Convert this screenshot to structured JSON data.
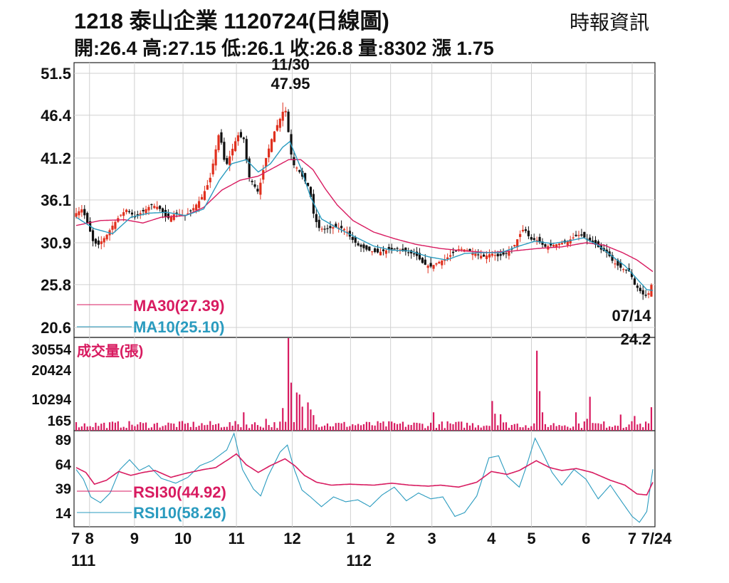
{
  "header": {
    "title": "1218  泰山企業 1120724(日線圖)",
    "source": "時報資訊",
    "summary": "開:26.4 高:27.15 低:26.1 收:26.8 量:8302 漲 1.75"
  },
  "colors": {
    "up": "#e0301e",
    "down": "#111111",
    "ma30": "#d81b60",
    "ma10": "#2a9bbf",
    "volume": "#d81b60",
    "grid": "#d0d0d0"
  },
  "chart_data": [
    {
      "type": "candlestick",
      "title": "",
      "yticks": [
        51.5,
        46.4,
        41.2,
        36.1,
        30.9,
        25.8,
        20.6
      ],
      "ylim": [
        20.6,
        51.5
      ],
      "xticks": [
        "7",
        "8",
        "9",
        "10",
        "11",
        "12",
        "1",
        "2",
        "3",
        "4",
        "5",
        "6",
        "7",
        "7/24"
      ],
      "xtick_pos": [
        0,
        11,
        48,
        88,
        132,
        178,
        226,
        259,
        293,
        342,
        375,
        420,
        458,
        475
      ],
      "year_labels": [
        {
          "label": "111",
          "pos": 6
        },
        {
          "label": "112",
          "pos": 233
        }
      ],
      "annotations": [
        {
          "date": "11/30",
          "value": "47.95",
          "label_top": "11/30",
          "label_bottom": "47.95"
        },
        {
          "date": "07/14",
          "value": "24.2",
          "label_top": "07/14",
          "label_bottom": "24.2"
        }
      ],
      "legend": [
        {
          "name": "MA30(27.39)",
          "color": "#d81b60"
        },
        {
          "name": "MA10(25.10)",
          "color": "#2a9bbf"
        }
      ],
      "close_keypoints": [
        [
          0,
          34.5
        ],
        [
          5,
          35
        ],
        [
          10,
          33
        ],
        [
          14,
          31
        ],
        [
          18,
          30.6
        ],
        [
          25,
          31.8
        ],
        [
          30,
          33
        ],
        [
          36,
          34.2
        ],
        [
          42,
          35
        ],
        [
          48,
          34
        ],
        [
          55,
          34.7
        ],
        [
          62,
          35.5
        ],
        [
          68,
          35.2
        ],
        [
          75,
          33.8
        ],
        [
          82,
          34.5
        ],
        [
          90,
          34.2
        ],
        [
          96,
          35
        ],
        [
          103,
          36.3
        ],
        [
          110,
          38.5
        ],
        [
          118,
          44.5
        ],
        [
          123,
          40
        ],
        [
          128,
          42
        ],
        [
          133,
          44
        ],
        [
          138,
          43.5
        ],
        [
          142,
          39
        ],
        [
          146,
          38
        ],
        [
          150,
          37
        ],
        [
          156,
          41
        ],
        [
          162,
          44
        ],
        [
          168,
          46
        ],
        [
          172,
          47.5
        ],
        [
          176,
          43
        ],
        [
          178,
          40.5
        ],
        [
          182,
          40
        ],
        [
          188,
          38.5
        ],
        [
          192,
          37.5
        ],
        [
          196,
          34
        ],
        [
          200,
          32.7
        ],
        [
          205,
          32.5
        ],
        [
          212,
          32.8
        ],
        [
          218,
          32.7
        ],
        [
          222,
          32.5
        ],
        [
          226,
          31.5
        ],
        [
          232,
          30.6
        ],
        [
          240,
          30
        ],
        [
          248,
          29.7
        ],
        [
          256,
          30
        ],
        [
          264,
          30.2
        ],
        [
          272,
          29.8
        ],
        [
          280,
          29.4
        ],
        [
          286,
          28.3
        ],
        [
          292,
          28
        ],
        [
          298,
          28.5
        ],
        [
          305,
          29
        ],
        [
          310,
          29.6
        ],
        [
          316,
          30.2
        ],
        [
          322,
          30
        ],
        [
          330,
          29.5
        ],
        [
          336,
          29.2
        ],
        [
          342,
          29.6
        ],
        [
          348,
          29.2
        ],
        [
          354,
          29.6
        ],
        [
          360,
          30.3
        ],
        [
          365,
          31.8
        ],
        [
          369,
          32.7
        ],
        [
          374,
          31.3
        ],
        [
          380,
          31.2
        ],
        [
          386,
          30.4
        ],
        [
          392,
          30.6
        ],
        [
          398,
          30.8
        ],
        [
          404,
          31
        ],
        [
          410,
          31.6
        ],
        [
          415,
          31.9
        ],
        [
          420,
          31.4
        ],
        [
          426,
          30.9
        ],
        [
          432,
          30.1
        ],
        [
          438,
          29.6
        ],
        [
          442,
          28.6
        ],
        [
          448,
          27.9
        ],
        [
          452,
          27.6
        ],
        [
          456,
          27.4
        ],
        [
          460,
          25.8
        ],
        [
          463,
          25.3
        ],
        [
          467,
          24.6
        ],
        [
          470,
          24.4
        ],
        [
          473,
          25.1
        ],
        [
          475,
          26.8
        ]
      ],
      "ma30_keypoints": [
        [
          0,
          33
        ],
        [
          20,
          33.6
        ],
        [
          40,
          33.7
        ],
        [
          55,
          33.3
        ],
        [
          70,
          34
        ],
        [
          90,
          34.2
        ],
        [
          105,
          35.2
        ],
        [
          120,
          37.3
        ],
        [
          135,
          38.5
        ],
        [
          150,
          39
        ],
        [
          165,
          40.2
        ],
        [
          175,
          41
        ],
        [
          185,
          41
        ],
        [
          195,
          39.8
        ],
        [
          205,
          37.5
        ],
        [
          215,
          35.5
        ],
        [
          228,
          33.6
        ],
        [
          245,
          32.2
        ],
        [
          262,
          31.4
        ],
        [
          280,
          30.7
        ],
        [
          300,
          30.2
        ],
        [
          320,
          29.9
        ],
        [
          340,
          29.7
        ],
        [
          360,
          29.9
        ],
        [
          380,
          30.2
        ],
        [
          400,
          30.4
        ],
        [
          420,
          30.9
        ],
        [
          435,
          30.6
        ],
        [
          450,
          29.7
        ],
        [
          462,
          28.8
        ],
        [
          475,
          27.39
        ]
      ],
      "ma10_keypoints": [
        [
          0,
          34
        ],
        [
          15,
          32.6
        ],
        [
          30,
          32
        ],
        [
          45,
          34
        ],
        [
          60,
          34.5
        ],
        [
          75,
          34.6
        ],
        [
          90,
          34.2
        ],
        [
          105,
          35
        ],
        [
          118,
          38.5
        ],
        [
          128,
          40.5
        ],
        [
          140,
          41
        ],
        [
          150,
          39.5
        ],
        [
          160,
          40.5
        ],
        [
          170,
          42.5
        ],
        [
          176,
          43.2
        ],
        [
          185,
          40
        ],
        [
          193,
          36.5
        ],
        [
          202,
          33.8
        ],
        [
          215,
          32.7
        ],
        [
          230,
          31.6
        ],
        [
          245,
          30.5
        ],
        [
          260,
          30
        ],
        [
          275,
          29.9
        ],
        [
          290,
          29.2
        ],
        [
          305,
          28.8
        ],
        [
          320,
          29.6
        ],
        [
          335,
          29.7
        ],
        [
          350,
          29.7
        ],
        [
          365,
          30.5
        ],
        [
          378,
          31.1
        ],
        [
          392,
          30.8
        ],
        [
          405,
          31.1
        ],
        [
          418,
          31.5
        ],
        [
          430,
          30.6
        ],
        [
          442,
          29.2
        ],
        [
          452,
          28.1
        ],
        [
          462,
          26.5
        ],
        [
          470,
          25.2
        ],
        [
          475,
          25.1
        ]
      ],
      "highs": [
        {
          "pos": 171,
          "value": 47.95
        },
        {
          "pos": 469,
          "value": 24.2
        }
      ]
    },
    {
      "type": "bar",
      "title": "成交量(張)",
      "yticks": [
        30554,
        20424,
        10294,
        165
      ],
      "ylim": [
        0,
        32000
      ],
      "spikes": [
        {
          "pos": 174,
          "value": 33000
        },
        {
          "pos": 178,
          "value": 17000
        },
        {
          "pos": 181,
          "value": 13500
        },
        {
          "pos": 183,
          "value": 12800
        },
        {
          "pos": 186,
          "value": 8500
        },
        {
          "pos": 191,
          "value": 10000
        },
        {
          "pos": 193,
          "value": 7500
        },
        {
          "pos": 196,
          "value": 5500
        },
        {
          "pos": 170,
          "value": 8000
        },
        {
          "pos": 137,
          "value": 6500
        },
        {
          "pos": 156,
          "value": 4200
        },
        {
          "pos": 294,
          "value": 6500
        },
        {
          "pos": 342,
          "value": 10500
        },
        {
          "pos": 346,
          "value": 6000
        },
        {
          "pos": 350,
          "value": 5800
        },
        {
          "pos": 379,
          "value": 28300
        },
        {
          "pos": 381,
          "value": 14000
        },
        {
          "pos": 384,
          "value": 6500
        },
        {
          "pos": 424,
          "value": 12000
        },
        {
          "pos": 411,
          "value": 6500
        },
        {
          "pos": 420,
          "value": 4200
        },
        {
          "pos": 449,
          "value": 5700
        },
        {
          "pos": 461,
          "value": 5200
        },
        {
          "pos": 475,
          "value": 8302
        }
      ],
      "base_level": 1800
    },
    {
      "type": "line",
      "title": "",
      "yticks": [
        89,
        64,
        39,
        14
      ],
      "ylim": [
        0,
        100
      ],
      "legend": [
        {
          "name": "RSI30(44.92)",
          "color": "#d81b60"
        },
        {
          "name": "RSI10(58.26)",
          "color": "#2a9bbf"
        }
      ],
      "rsi30_keypoints": [
        [
          0,
          60
        ],
        [
          8,
          55
        ],
        [
          15,
          43
        ],
        [
          25,
          47
        ],
        [
          35,
          56
        ],
        [
          45,
          52
        ],
        [
          55,
          55
        ],
        [
          65,
          57
        ],
        [
          78,
          50
        ],
        [
          90,
          54
        ],
        [
          105,
          58
        ],
        [
          115,
          60
        ],
        [
          125,
          68
        ],
        [
          132,
          74
        ],
        [
          140,
          63
        ],
        [
          150,
          55
        ],
        [
          160,
          62
        ],
        [
          172,
          69
        ],
        [
          180,
          62
        ],
        [
          188,
          52
        ],
        [
          198,
          45
        ],
        [
          210,
          42
        ],
        [
          225,
          43
        ],
        [
          245,
          42
        ],
        [
          260,
          44
        ],
        [
          275,
          42
        ],
        [
          290,
          41
        ],
        [
          300,
          42
        ],
        [
          315,
          40
        ],
        [
          330,
          45
        ],
        [
          342,
          56
        ],
        [
          355,
          53
        ],
        [
          365,
          57
        ],
        [
          379,
          67
        ],
        [
          390,
          60
        ],
        [
          400,
          57
        ],
        [
          412,
          59
        ],
        [
          425,
          55
        ],
        [
          440,
          47
        ],
        [
          452,
          42
        ],
        [
          462,
          33
        ],
        [
          470,
          32
        ],
        [
          475,
          44.92
        ]
      ],
      "rsi10_keypoints": [
        [
          0,
          58
        ],
        [
          6,
          48
        ],
        [
          12,
          30
        ],
        [
          20,
          24
        ],
        [
          28,
          34
        ],
        [
          36,
          58
        ],
        [
          44,
          68
        ],
        [
          52,
          57
        ],
        [
          60,
          62
        ],
        [
          70,
          49
        ],
        [
          82,
          44
        ],
        [
          92,
          50
        ],
        [
          102,
          62
        ],
        [
          112,
          67
        ],
        [
          124,
          78
        ],
        [
          130,
          95
        ],
        [
          137,
          58
        ],
        [
          146,
          38
        ],
        [
          152,
          31
        ],
        [
          158,
          51
        ],
        [
          168,
          76
        ],
        [
          174,
          83
        ],
        [
          180,
          57
        ],
        [
          186,
          37
        ],
        [
          193,
          30
        ],
        [
          202,
          20
        ],
        [
          212,
          30
        ],
        [
          222,
          25
        ],
        [
          232,
          27
        ],
        [
          242,
          20
        ],
        [
          252,
          32
        ],
        [
          262,
          40
        ],
        [
          272,
          26
        ],
        [
          282,
          34
        ],
        [
          292,
          28
        ],
        [
          302,
          30
        ],
        [
          312,
          10
        ],
        [
          320,
          14
        ],
        [
          330,
          31
        ],
        [
          340,
          70
        ],
        [
          348,
          72
        ],
        [
          355,
          51
        ],
        [
          365,
          40
        ],
        [
          370,
          58
        ],
        [
          378,
          90
        ],
        [
          385,
          73
        ],
        [
          392,
          55
        ],
        [
          400,
          42
        ],
        [
          410,
          58
        ],
        [
          420,
          48
        ],
        [
          430,
          28
        ],
        [
          440,
          42
        ],
        [
          450,
          24
        ],
        [
          458,
          10
        ],
        [
          464,
          4
        ],
        [
          470,
          15
        ],
        [
          475,
          58.26
        ]
      ]
    }
  ]
}
